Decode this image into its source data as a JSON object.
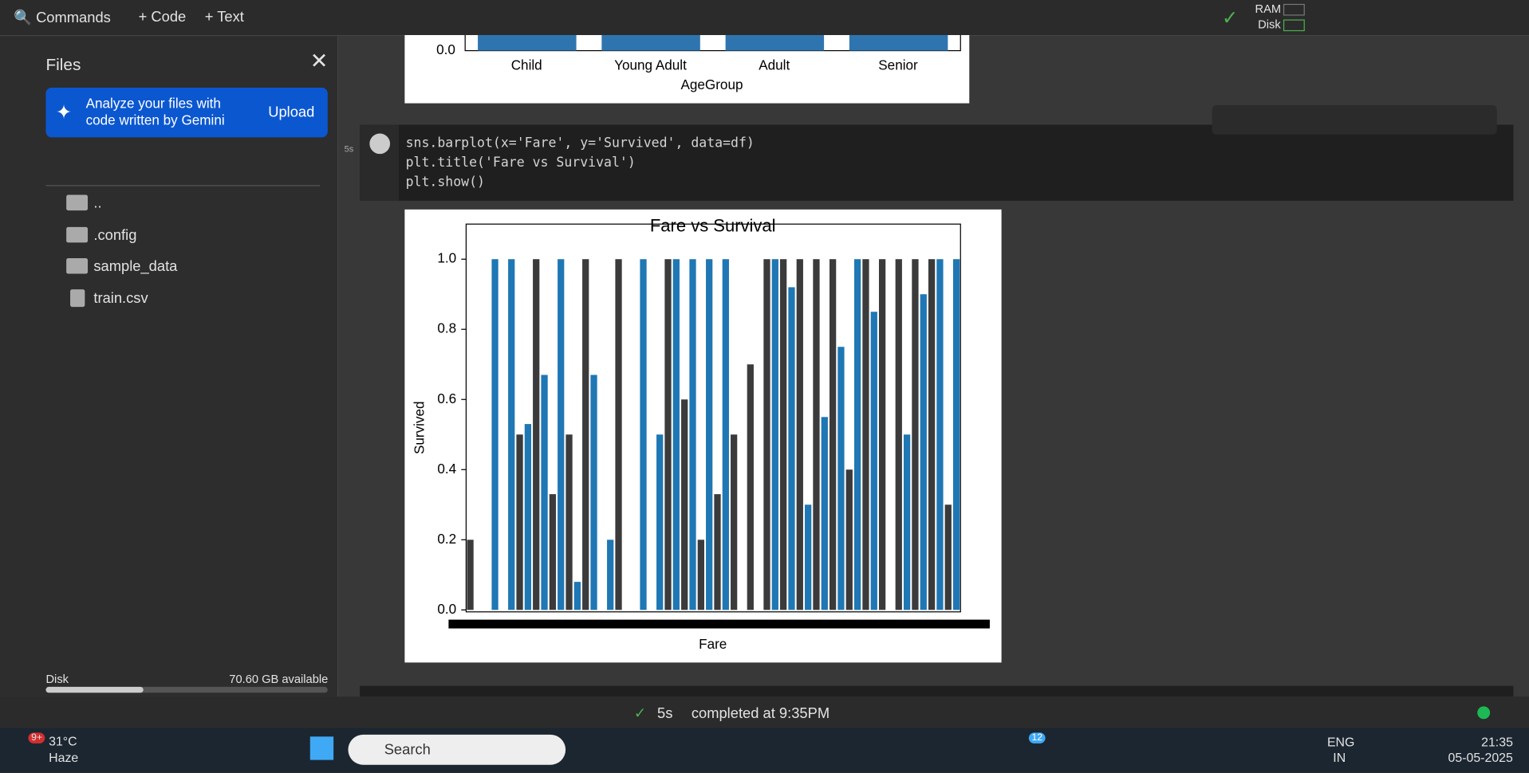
{
  "toolbar": {
    "commands": "Commands",
    "code": "+ Code",
    "text": "+ Text",
    "ram": "RAM",
    "disk": "Disk"
  },
  "sidebar": {
    "title": "Files",
    "banner": "Analyze your files with code written by Gemini",
    "upload": "Upload",
    "files": [
      "..",
      ".config",
      "sample_data",
      "train.csv"
    ],
    "disk_label": "Disk",
    "disk_available": "70.60 GB available"
  },
  "top_output": {
    "categories": [
      "Child",
      "Young Adult",
      "Adult",
      "Senior"
    ],
    "xlabel": "AgeGroup",
    "ytick": "0.0"
  },
  "cell": {
    "exec_time": "5s",
    "code": [
      "sns.barplot(x='Fare', y='Survived', data=df)",
      "plt.title('Fare vs Survival')",
      "plt.show()"
    ]
  },
  "chart_data": {
    "type": "bar",
    "title": "Fare vs Survival",
    "x_label": "Fare",
    "y_label": "Survived",
    "values": [
      0.2,
      0,
      0,
      1,
      0,
      1,
      0.5,
      0.53,
      1,
      0.67,
      0.33,
      1,
      0.5,
      0.08,
      1,
      0.67,
      0,
      0.2,
      1,
      0,
      0,
      1,
      0,
      0.5,
      1,
      1,
      0.6,
      1,
      0.2,
      1,
      0.33,
      1,
      0.5,
      0,
      0.7,
      0,
      1,
      1,
      1,
      0.92,
      1,
      0.3,
      1,
      0.55,
      1,
      0.75,
      0.4,
      1,
      1,
      0.85,
      1,
      0,
      1,
      0.5,
      1,
      0.9,
      1,
      1,
      0.3,
      1
    ],
    "colors": [
      "#3b3b3b",
      "#1f77b4"
    ],
    "ylim": [
      0,
      1.05
    ],
    "yticks": [
      {
        "value": 0,
        "label": "0.0"
      },
      0.2,
      0.4,
      0.6,
      0.8,
      {
        "value": 1,
        "label": "1.0"
      }
    ]
  },
  "status": {
    "time": "5s",
    "message": "completed at 9:35PM"
  },
  "taskbar": {
    "temp": "31°C",
    "weather": "Haze",
    "badge": "9+",
    "search": "Search",
    "whatsapp_badge": "12",
    "lang": "ENG",
    "region": "IN",
    "clock": "21:35",
    "date": "05-05-2025"
  }
}
